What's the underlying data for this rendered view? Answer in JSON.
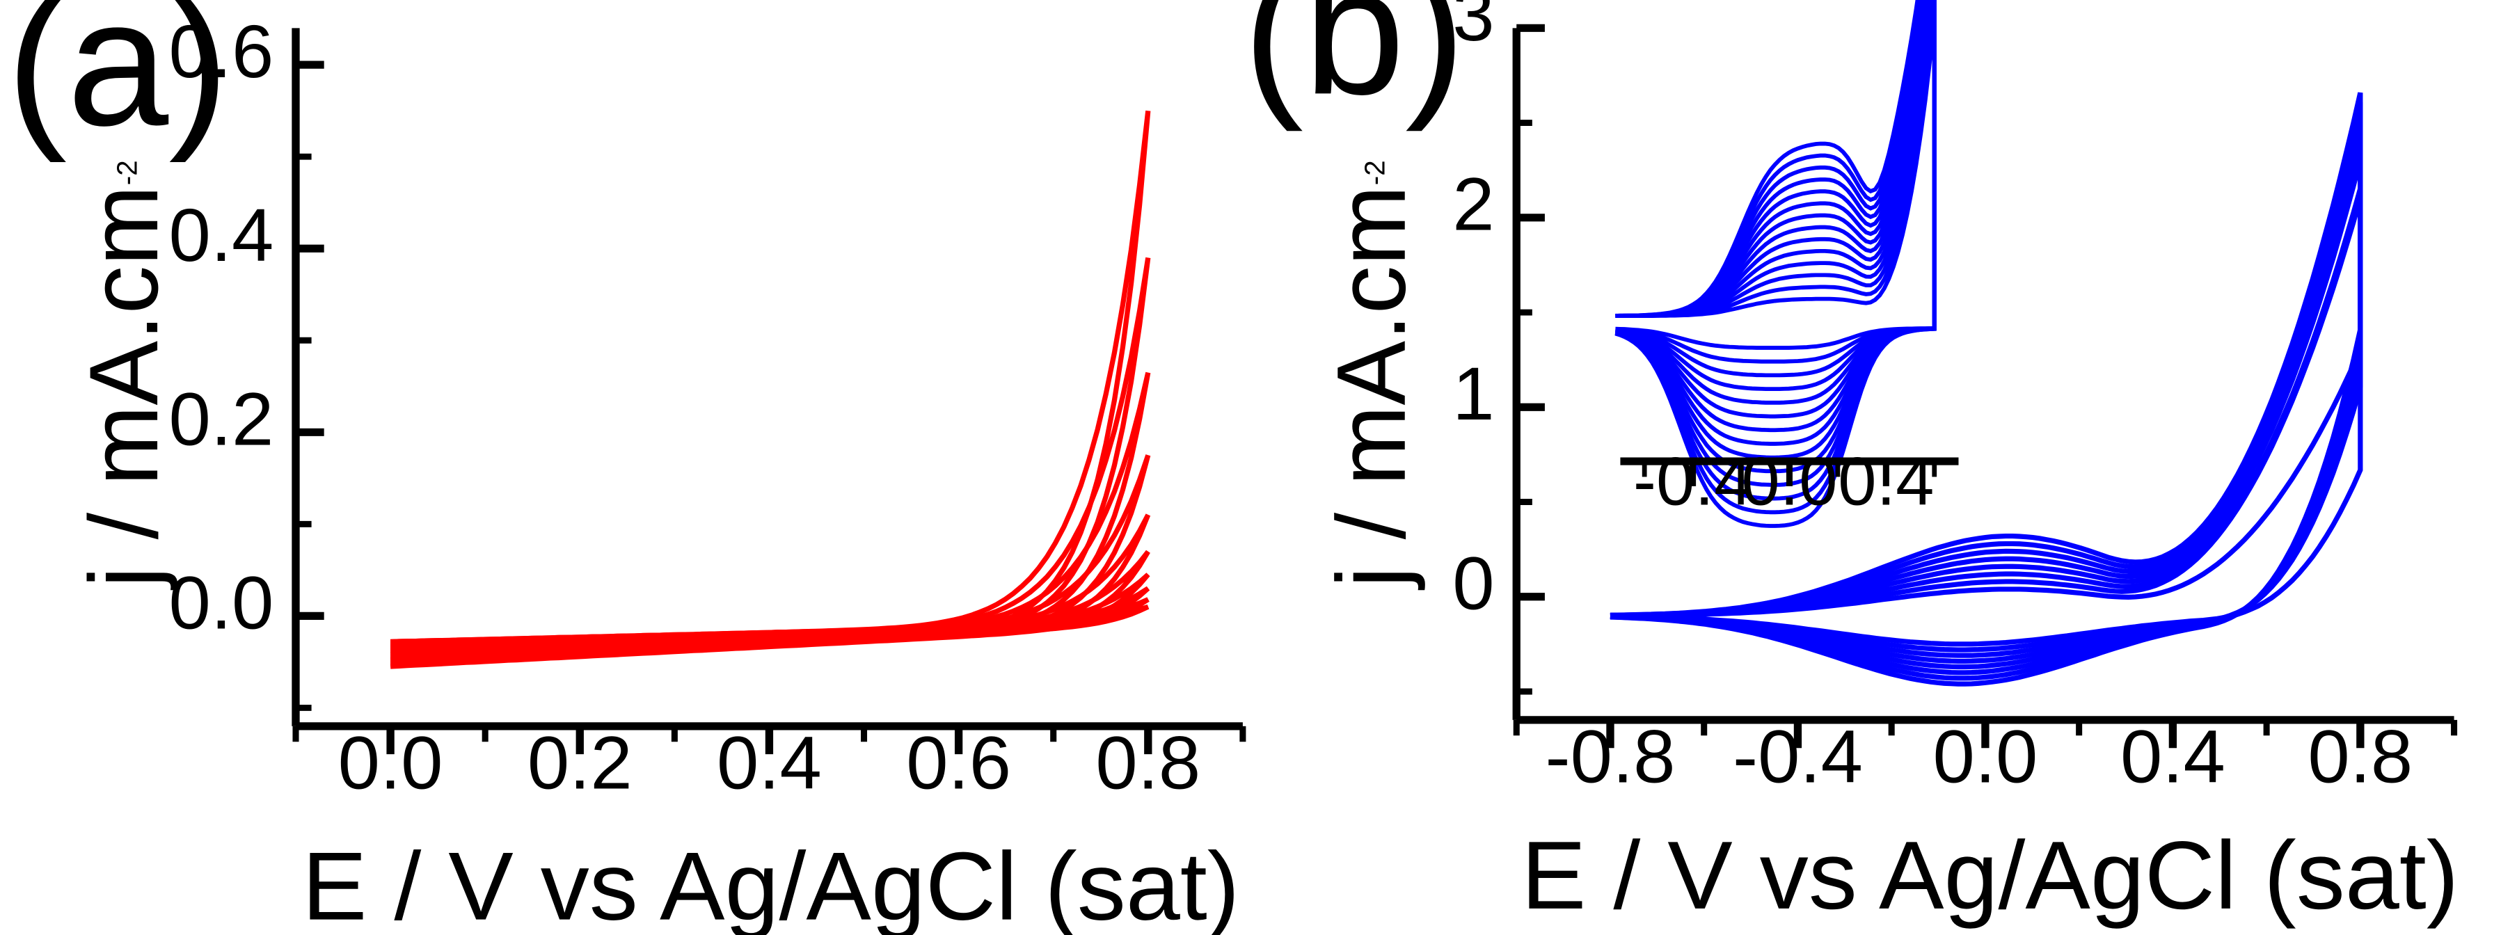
{
  "chart_data": [
    {
      "id": "a",
      "panel_label": "(a)",
      "type": "line",
      "color": "#ff0000",
      "xlabel": "E / V vs Ag/AgCl (sat)",
      "ylabel_main": "j / mA.cm",
      "ylabel_sup": "-2",
      "xlim": [
        -0.1,
        0.9
      ],
      "ylim": [
        -0.12,
        0.64
      ],
      "xticks": [
        0.0,
        0.2,
        0.4,
        0.6,
        0.8
      ],
      "xtick_labels": [
        "0.0",
        "0.2",
        "0.4",
        "0.6",
        "0.8"
      ],
      "yticks": [
        0.0,
        0.2,
        0.4,
        0.6
      ],
      "ytick_labels": [
        "0.0",
        "0.2",
        "0.4",
        "0.6"
      ],
      "curve_model": {
        "x_start": 0.0,
        "x_end": 0.8,
        "forward_start_values": [
          -0.028,
          -0.03,
          -0.032,
          -0.034,
          -0.036,
          -0.038,
          -0.04,
          -0.042
        ],
        "reverse_start_values": [
          -0.04,
          -0.042,
          -0.044,
          -0.046,
          -0.048,
          -0.05,
          -0.052,
          -0.055
        ],
        "end_values": [
          0.55,
          0.39,
          0.265,
          0.175,
          0.11,
          0.07,
          0.045,
          0.03,
          0.018,
          0.01
        ]
      }
    },
    {
      "id": "b",
      "panel_label": "(b)",
      "type": "line",
      "color": "#0000ff",
      "xlabel": "E / V vs Ag/AgCl (sat)",
      "ylabel_main": "j / mA.cm",
      "ylabel_sup": "-2",
      "xlim": [
        -1.0,
        1.0
      ],
      "ylim": [
        -0.65,
        3.0
      ],
      "xticks": [
        -0.8,
        -0.4,
        0.0,
        0.4,
        0.8
      ],
      "xtick_labels": [
        "-0.8",
        "-0.4",
        "0.0",
        "0.4",
        "0.8"
      ],
      "yticks": [
        0,
        1,
        2,
        3
      ],
      "ytick_labels": [
        "0",
        "1",
        "2",
        "3"
      ],
      "curve_model": {
        "x_start": -0.8,
        "x_end": 0.8,
        "start_value": -0.1,
        "end_values": [
          2.75,
          2.7,
          2.6,
          2.5,
          2.4,
          2.25,
          2.2,
          1.4
        ],
        "peak_anodic_values": [
          0.42,
          0.38,
          0.34,
          0.3,
          0.26,
          0.22,
          0.18,
          0.14
        ],
        "peak_cathodic_values": [
          -0.36,
          -0.33,
          -0.3,
          -0.27,
          -0.24,
          -0.21,
          -0.18,
          -0.15
        ]
      },
      "inset": {
        "xticks": [
          -0.4,
          0.0,
          0.4
        ],
        "xtick_labels": [
          "-0.4",
          "0.0",
          "0.4"
        ],
        "xlim": [
          -0.7,
          0.7
        ]
      }
    }
  ]
}
